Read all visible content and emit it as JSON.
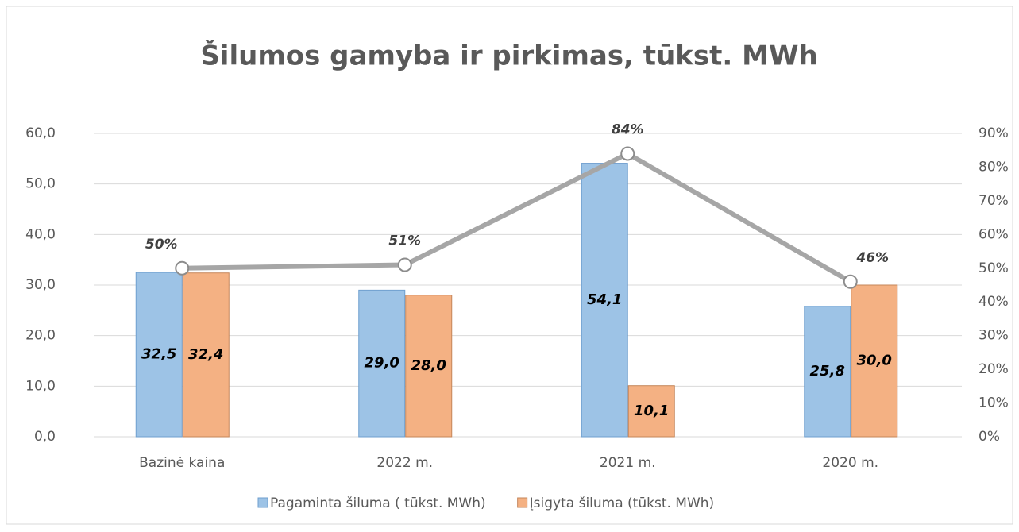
{
  "chart_data": {
    "type": "bar",
    "title": "Šilumos gamyba ir pirkimas, tūkst. MWh",
    "categories": [
      "Bazinė kaina",
      "2022 m.",
      "2021 m.",
      "2020 m."
    ],
    "series": [
      {
        "name": "Pagaminta šiluma ( tūkst. MWh)",
        "color": "#9dc3e6",
        "values": [
          32.5,
          29.0,
          54.1,
          25.8
        ],
        "value_labels": [
          "32,5",
          "29,0",
          "54,1",
          "25,8"
        ]
      },
      {
        "name": "Įsigyta šiluma (tūkst. MWh)",
        "color": "#f4b183",
        "values": [
          32.4,
          28.0,
          10.1,
          30.0
        ],
        "value_labels": [
          "32,4",
          "28,0",
          "10,1",
          "30,0"
        ]
      },
      {
        "type": "line",
        "axis": "y2",
        "color": "#a6a6a6",
        "values": [
          50,
          51,
          84,
          46
        ],
        "value_labels": [
          "50%",
          "51%",
          "84%",
          "46%"
        ]
      }
    ],
    "ylim": [
      0,
      60
    ],
    "yticks": [
      {
        "value": 0,
        "label": "0,0"
      },
      {
        "value": 10,
        "label": "10,0"
      },
      {
        "value": 20,
        "label": "20,0"
      },
      {
        "value": 30,
        "label": "30,0"
      },
      {
        "value": 40,
        "label": "40,0"
      },
      {
        "value": 50,
        "label": "50,0"
      },
      {
        "value": 60,
        "label": "60,0"
      }
    ],
    "y2lim": [
      0,
      90
    ],
    "y2ticks": [
      {
        "value": 0,
        "label": "0%"
      },
      {
        "value": 10,
        "label": "10%"
      },
      {
        "value": 20,
        "label": "20%"
      },
      {
        "value": 30,
        "label": "30%"
      },
      {
        "value": 40,
        "label": "40%"
      },
      {
        "value": 50,
        "label": "50%"
      },
      {
        "value": 60,
        "label": "60%"
      },
      {
        "value": 70,
        "label": "70%"
      },
      {
        "value": 80,
        "label": "80%"
      },
      {
        "value": 90,
        "label": "90%"
      }
    ],
    "grid": true,
    "legend": "bottom"
  }
}
